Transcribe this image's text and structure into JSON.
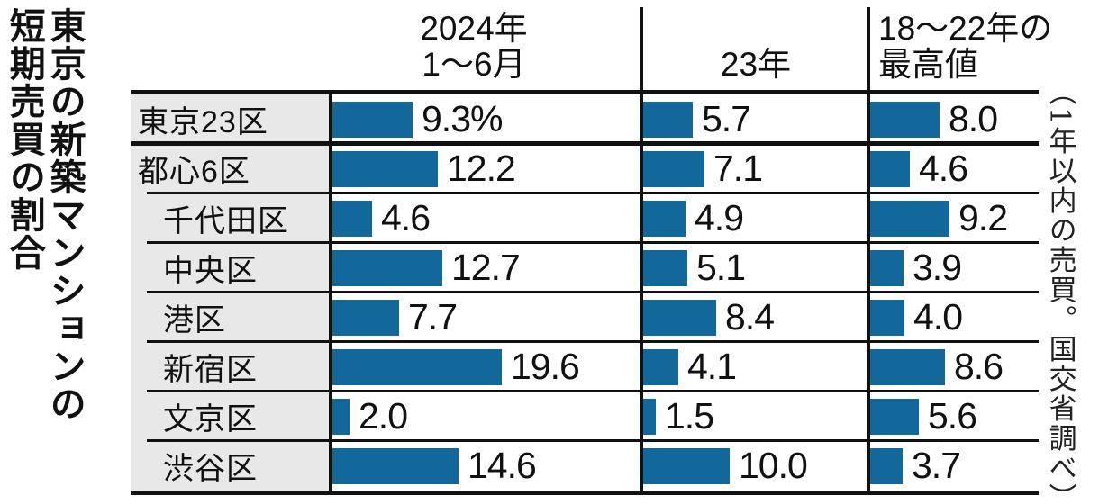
{
  "title": {
    "line1": "東京の新築マンションの",
    "line2": "短期売買の割合"
  },
  "headers": {
    "col1_line1": "2024年",
    "col1_line2": "1〜6月",
    "col2": "23年",
    "col3_line1": "18〜22年の",
    "col3_line2": "最高値"
  },
  "note": "（1年以内の売買。国交省調べ）",
  "colors": {
    "bar_blue": "#12689a",
    "label_bg": "#e8e8e8",
    "line_black": "#111111"
  },
  "table": {
    "rows": [
      {
        "label": "東京23区",
        "indent": false,
        "group_start": false,
        "display": [
          "9.3%",
          "5.7",
          "8.0"
        ]
      },
      {
        "label": "都心6区",
        "indent": false,
        "group_start": true,
        "display": [
          "12.2",
          "7.1",
          "4.6"
        ]
      },
      {
        "label": "千代田区",
        "indent": true,
        "group_start": false,
        "display": [
          "4.6",
          "4.9",
          "9.2"
        ]
      },
      {
        "label": "中央区",
        "indent": true,
        "group_start": false,
        "display": [
          "12.7",
          "5.1",
          "3.9"
        ]
      },
      {
        "label": "港区",
        "indent": true,
        "group_start": false,
        "display": [
          "7.7",
          "8.4",
          "4.0"
        ]
      },
      {
        "label": "新宿区",
        "indent": true,
        "group_start": false,
        "display": [
          "19.6",
          "4.1",
          "8.6"
        ]
      },
      {
        "label": "文京区",
        "indent": true,
        "group_start": false,
        "display": [
          "2.0",
          "1.5",
          "5.6"
        ]
      },
      {
        "label": "渋谷区",
        "indent": true,
        "group_start": false,
        "display": [
          "14.6",
          "10.0",
          "3.7"
        ]
      }
    ]
  },
  "chart_data": {
    "type": "bar",
    "orientation": "horizontal",
    "unit": "%",
    "title": "東京の新築マンションの短期売買の割合",
    "note": "（1年以内の売買。国交省調べ）",
    "categories": [
      "東京23区",
      "都心6区",
      "千代田区",
      "中央区",
      "港区",
      "新宿区",
      "文京区",
      "渋谷区"
    ],
    "series": [
      {
        "name": "2024年1〜6月",
        "values": [
          9.3,
          12.2,
          4.6,
          12.7,
          7.7,
          19.6,
          2.0,
          14.6
        ]
      },
      {
        "name": "23年",
        "values": [
          5.7,
          7.1,
          4.9,
          5.1,
          8.4,
          4.1,
          1.5,
          10.0
        ]
      },
      {
        "name": "18〜22年の最高値",
        "values": [
          8.0,
          4.6,
          9.2,
          3.9,
          4.0,
          8.6,
          5.6,
          3.7
        ]
      }
    ],
    "value_labels_shown": true,
    "grid": false,
    "legend_position": "column-headers"
  }
}
